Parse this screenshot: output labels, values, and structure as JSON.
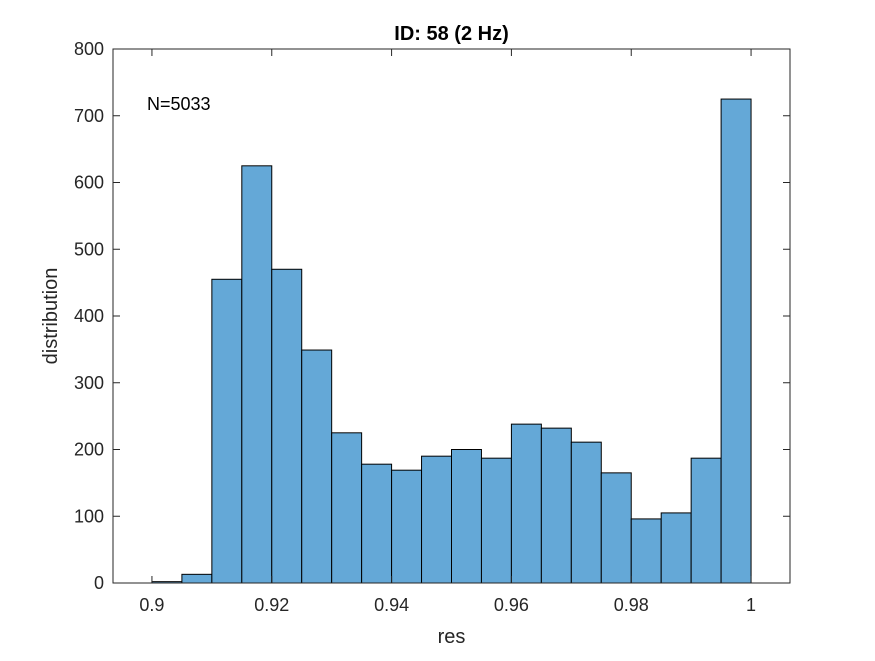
{
  "chart_data": {
    "type": "bar",
    "title": "ID: 58 (2 Hz)",
    "xlabel": "res",
    "ylabel": "distribution",
    "annotation": "N=5033",
    "xlim": [
      0.8935,
      1.0065
    ],
    "ylim": [
      0,
      800
    ],
    "xticks": [
      0.9,
      0.92,
      0.94,
      0.96,
      0.98,
      1
    ],
    "xtick_labels": [
      "0.9",
      "0.92",
      "0.94",
      "0.96",
      "0.98",
      "1"
    ],
    "yticks": [
      0,
      100,
      200,
      300,
      400,
      500,
      600,
      700,
      800
    ],
    "ytick_labels": [
      "0",
      "100",
      "200",
      "300",
      "400",
      "500",
      "600",
      "700",
      "800"
    ],
    "bin_edges": [
      0.9,
      0.905,
      0.91,
      0.915,
      0.92,
      0.925,
      0.93,
      0.935,
      0.94,
      0.945,
      0.95,
      0.955,
      0.96,
      0.965,
      0.97,
      0.975,
      0.98,
      0.985,
      0.99,
      0.995,
      1.0
    ],
    "values": [
      2,
      13,
      455,
      625,
      470,
      349,
      225,
      178,
      169,
      190,
      200,
      187,
      238,
      232,
      211,
      165,
      96,
      105,
      187,
      725
    ],
    "bar_color": "#64a8d7",
    "edge_color": "#000000",
    "grid": false,
    "box": true
  }
}
